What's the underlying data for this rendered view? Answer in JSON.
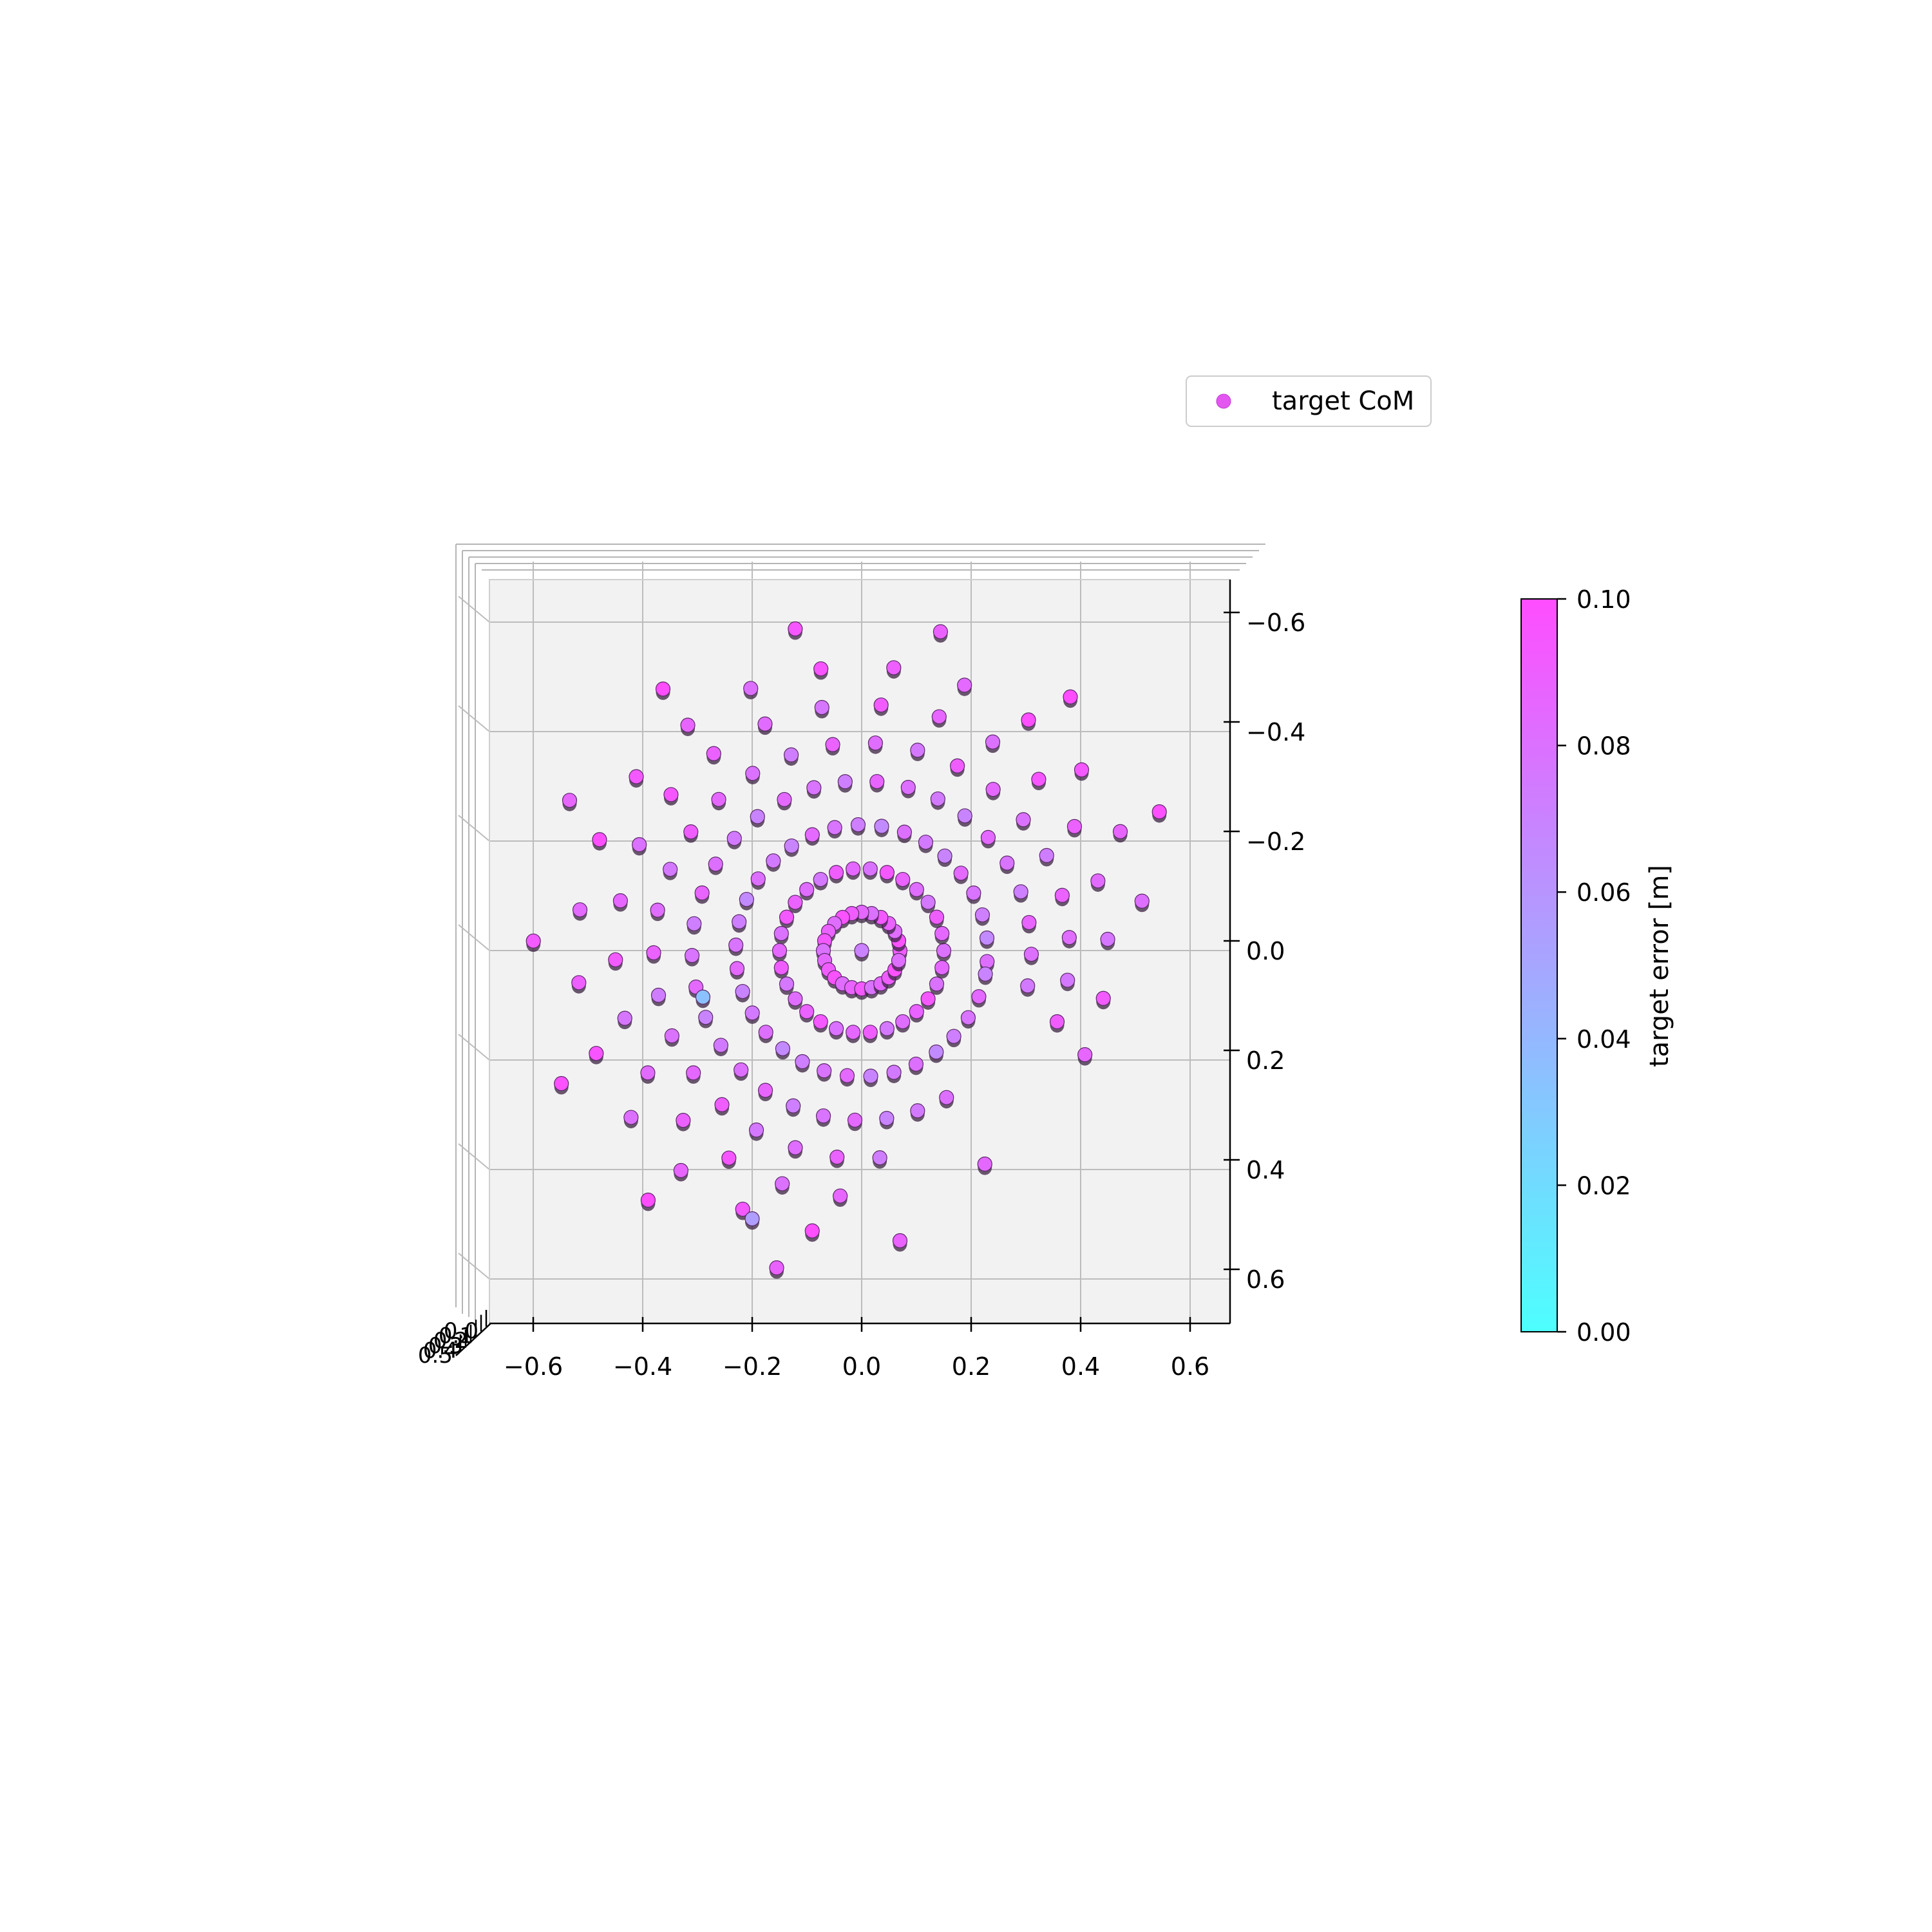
{
  "chart_data": {
    "type": "scatter",
    "projection": "3d (top view)",
    "legend": {
      "label": "target CoM",
      "marker_color": "#e356f0",
      "placement": "upper right, above plot"
    },
    "x_axis": {
      "range": [
        -0.68,
        0.68
      ],
      "ticks": [
        -0.6,
        -0.4,
        -0.2,
        0.0,
        0.2,
        0.4,
        0.6
      ],
      "tick_labels": [
        "−0.6",
        "−0.4",
        "−0.2",
        "0.0",
        "0.2",
        "0.4",
        "0.6"
      ]
    },
    "y_axis": {
      "range": [
        -0.68,
        0.68
      ],
      "inverted": true,
      "ticks": [
        -0.6,
        -0.4,
        -0.2,
        0.0,
        0.2,
        0.4,
        0.6
      ],
      "tick_labels": [
        "−0.6",
        "−0.4",
        "−0.2",
        "0.0",
        "0.2",
        "0.4",
        "0.6"
      ]
    },
    "z_axis": {
      "tick_labels": [
        "0.0",
        "0.1",
        "0.2",
        "0.3",
        "0.4",
        "0.5"
      ]
    },
    "grid": true,
    "colorbar": {
      "label": "target error [m]",
      "range": [
        0.0,
        0.1
      ],
      "ticks": [
        "0.00",
        "0.02",
        "0.04",
        "0.06",
        "0.08",
        "0.10"
      ],
      "colormap": "cool",
      "color_low": "#4dffff",
      "color_high": "#ff4dff"
    },
    "rings": [
      {
        "radius": 0.0,
        "count": 1,
        "arc_start_deg": 0,
        "arc_end_deg": 360,
        "error": 0.07
      },
      {
        "radius": 0.07,
        "count": 24,
        "arc_start_deg": 0,
        "arc_end_deg": 360,
        "error": 0.088
      },
      {
        "radius": 0.15,
        "count": 30,
        "arc_start_deg": 0,
        "arc_end_deg": 360,
        "error": 0.085
      },
      {
        "radius": 0.23,
        "count": 34,
        "arc_start_deg": -5,
        "arc_end_deg": 360,
        "error": 0.075
      },
      {
        "radius": 0.31,
        "count": 30,
        "arc_start_deg": -12,
        "arc_end_deg": 300,
        "error": 0.078
      },
      {
        "radius": 0.38,
        "count": 26,
        "arc_start_deg": -20,
        "arc_end_deg": 275,
        "error": 0.082
      },
      {
        "radius": 0.45,
        "count": 22,
        "arc_start_deg": -25,
        "arc_end_deg": 265,
        "error": 0.086
      },
      {
        "radius": 0.52,
        "count": 18,
        "arc_start_deg": 10,
        "arc_end_deg": 260,
        "error": 0.09
      },
      {
        "radius": 0.6,
        "count": 10,
        "arc_start_deg": 25,
        "arc_end_deg": 255,
        "error": 0.095
      }
    ],
    "outliers": [
      {
        "x": -0.29,
        "y": 0.085,
        "error": 0.035
      },
      {
        "x": 0.225,
        "y": 0.39,
        "error": 0.085
      },
      {
        "x": 0.07,
        "y": 0.53,
        "error": 0.088
      },
      {
        "x": -0.2,
        "y": 0.49,
        "error": 0.055
      }
    ]
  }
}
